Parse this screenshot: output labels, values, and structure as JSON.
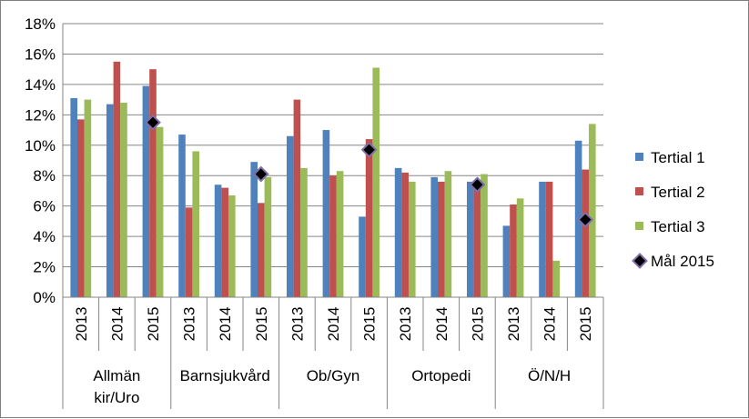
{
  "chart_data": {
    "type": "bar",
    "title": "",
    "xlabel": "",
    "ylabel": "",
    "ylim": [
      0,
      18
    ],
    "y_ticks": [
      "0%",
      "2%",
      "4%",
      "6%",
      "8%",
      "10%",
      "12%",
      "14%",
      "16%",
      "18%"
    ],
    "grid": true,
    "legend_position": "right",
    "groups": [
      {
        "name_lines": [
          "Allmän",
          "kir/Uro"
        ],
        "years": [
          "2013",
          "2014",
          "2015"
        ]
      },
      {
        "name_lines": [
          "Barnsjukvård"
        ],
        "years": [
          "2013",
          "2014",
          "2015"
        ]
      },
      {
        "name_lines": [
          "Ob/Gyn"
        ],
        "years": [
          "2013",
          "2014",
          "2015"
        ]
      },
      {
        "name_lines": [
          "Ortopedi"
        ],
        "years": [
          "2013",
          "2014",
          "2015"
        ]
      },
      {
        "name_lines": [
          "Ö/N/H"
        ],
        "years": [
          "2013",
          "2014",
          "2015"
        ]
      }
    ],
    "series": [
      {
        "name": "Tertial 1",
        "color": "#4f81bd",
        "values": [
          13.1,
          12.7,
          13.9,
          10.7,
          7.4,
          8.9,
          10.6,
          11.0,
          5.3,
          8.5,
          7.9,
          7.6,
          4.7,
          7.6,
          10.3
        ]
      },
      {
        "name": "Tertial 2",
        "color": "#c0504d",
        "values": [
          11.7,
          15.5,
          15.0,
          5.9,
          7.2,
          6.2,
          13.0,
          8.0,
          10.4,
          8.2,
          7.6,
          7.5,
          6.1,
          7.6,
          8.4
        ]
      },
      {
        "name": "Tertial 3",
        "color": "#9bbb59",
        "values": [
          13.0,
          12.8,
          11.2,
          9.6,
          6.7,
          7.9,
          8.5,
          8.3,
          15.1,
          7.6,
          8.3,
          8.1,
          6.5,
          2.4,
          11.4
        ]
      }
    ],
    "target": {
      "name": "Mål 2015",
      "points": [
        {
          "group": 0,
          "value": 11.5
        },
        {
          "group": 1,
          "value": 8.1
        },
        {
          "group": 2,
          "value": 9.7
        },
        {
          "group": 3,
          "value": 7.4
        },
        {
          "group": 4,
          "value": 5.1
        }
      ]
    }
  }
}
